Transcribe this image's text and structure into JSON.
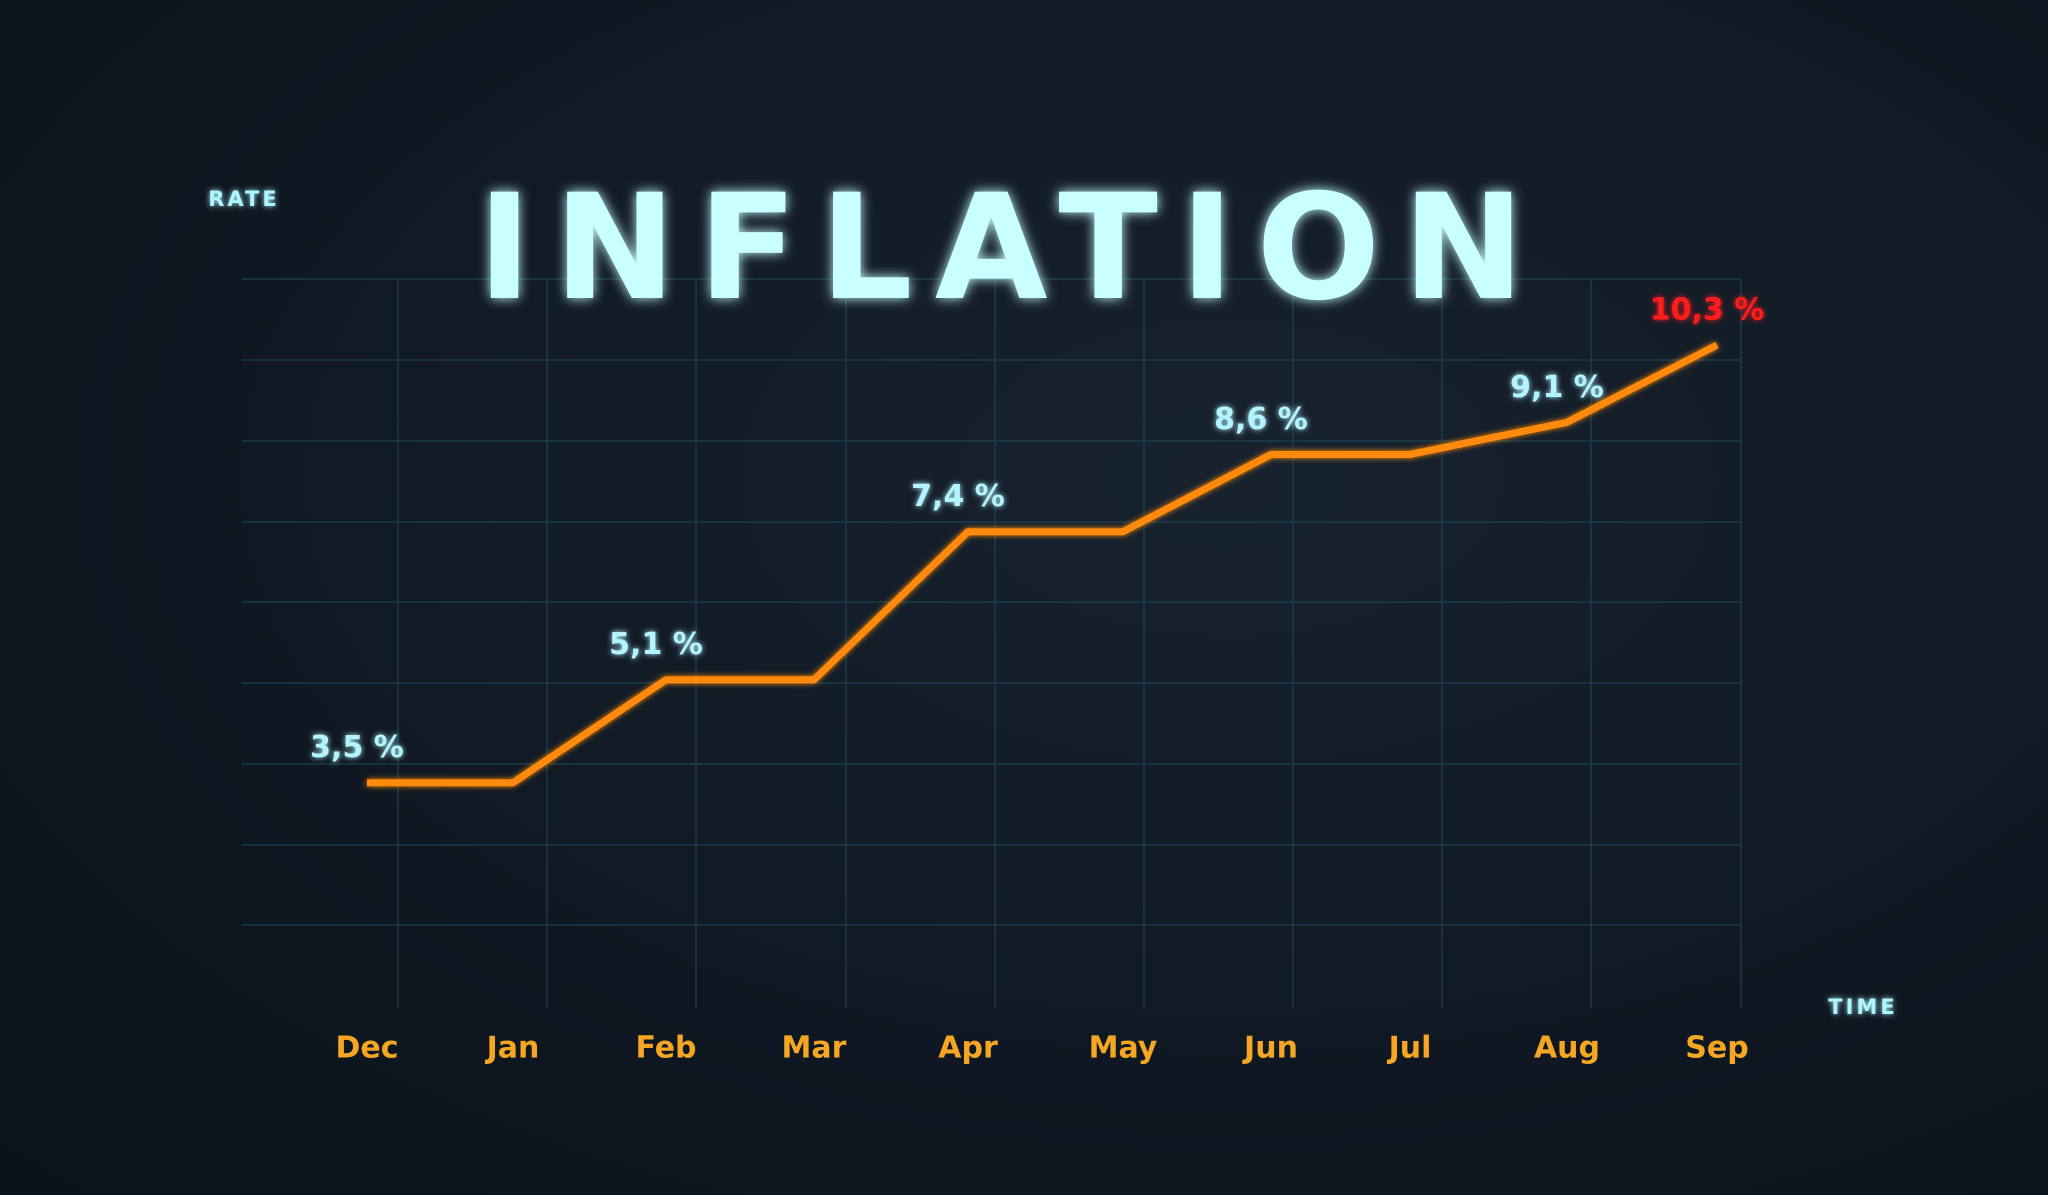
{
  "chart_data": {
    "type": "line",
    "title": "INFLATION",
    "y_label": "RATE",
    "x_label": "TIME",
    "categories": [
      "Dec",
      "Jan",
      "Feb",
      "Mar",
      "Apr",
      "May",
      "Jun",
      "Jul",
      "Aug",
      "Sep"
    ],
    "series": [
      {
        "name": null,
        "color": "#ff8a0a",
        "values": [
          3.5,
          3.5,
          5.1,
          5.1,
          7.4,
          7.4,
          8.6,
          8.6,
          9.1,
          10.3
        ],
        "value_labels": [
          "3,5 %",
          null,
          "5,1 %",
          null,
          "7,4 %",
          null,
          "8,6 %",
          null,
          "9,1 %",
          "10,3 %"
        ],
        "value_label_colors": [
          "#b4f4ff",
          null,
          "#b4f4ff",
          null,
          "#b4f4ff",
          null,
          "#b4f4ff",
          null,
          "#b4f4ff",
          "#ff1c1c"
        ]
      }
    ],
    "ylim": [
      0,
      11
    ],
    "axis_color": "#1fb4d8",
    "category_color": "#f5a623",
    "grid": true
  }
}
